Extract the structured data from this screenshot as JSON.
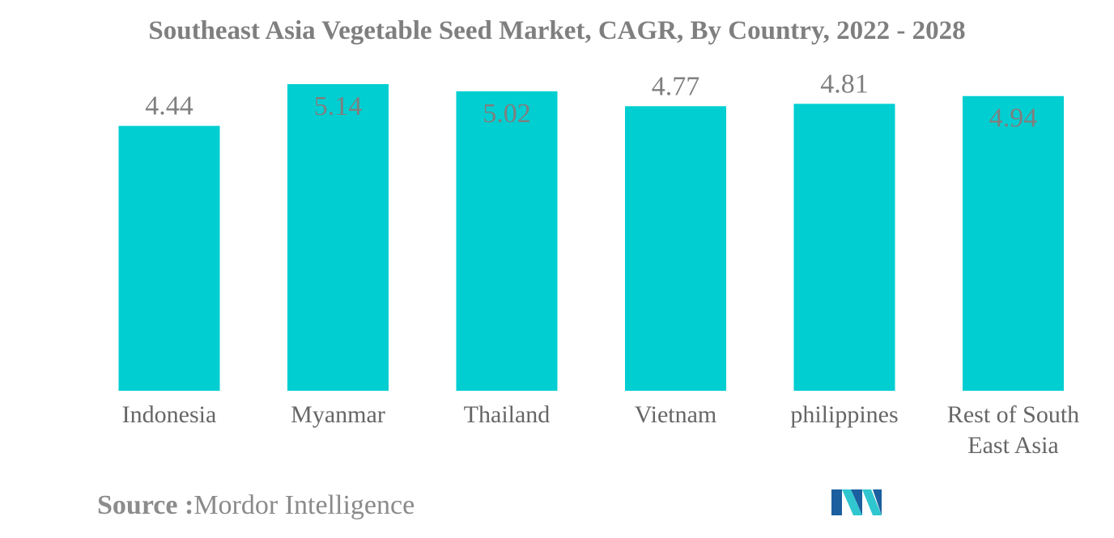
{
  "chart_data": {
    "type": "bar",
    "title": "Southeast Asia Vegetable Seed Market, CAGR, By Country, 2022 - 2028",
    "xlabel": "",
    "ylabel": "",
    "categories": [
      "Indonesia",
      "Myanmar",
      "Thailand",
      "Vietnam",
      "philippines",
      "Rest of South East Asia"
    ],
    "category_lines": [
      [
        "Indonesia"
      ],
      [
        "Myanmar"
      ],
      [
        "Thailand"
      ],
      [
        "Vietnam"
      ],
      [
        "philippines"
      ],
      [
        "Rest of South",
        "East Asia"
      ]
    ],
    "values": [
      4.44,
      5.14,
      5.02,
      4.77,
      4.81,
      4.94
    ],
    "value_labels": [
      "4.44",
      "5.14",
      "5.02",
      "4.77",
      "4.81",
      "4.94"
    ],
    "ylim": [
      0,
      5.14
    ],
    "grid": false,
    "legend": "none",
    "colors": {
      "bar": "#00ced1",
      "label": "#7f7f7f",
      "title": "#7f7f7f"
    }
  },
  "source": {
    "label": "Source :",
    "text": "Mordor Intelligence"
  },
  "logo": {
    "icon": "mordor-intelligence-logo-icon",
    "colors": [
      "#1b5f9e",
      "#2fc6cf"
    ]
  }
}
